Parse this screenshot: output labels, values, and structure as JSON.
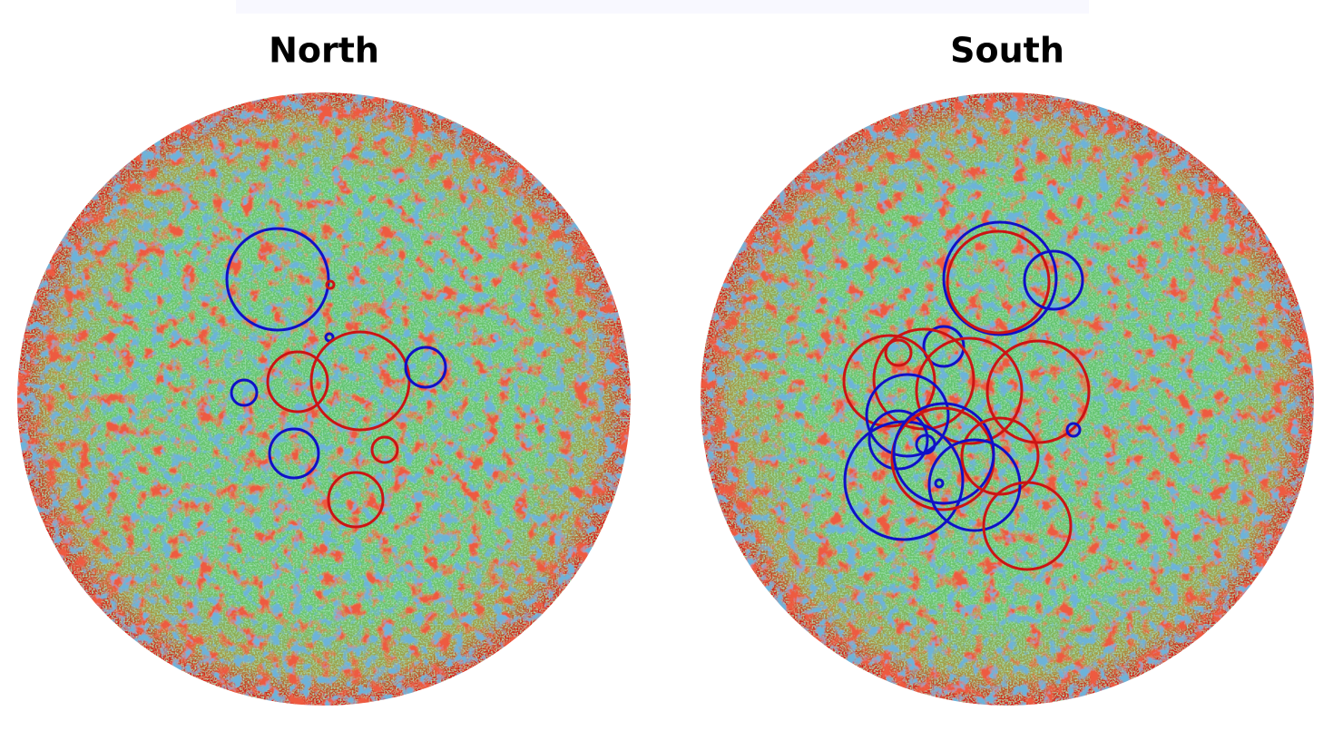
{
  "panels": [
    {
      "title": "North"
    },
    {
      "title": "South"
    }
  ]
}
